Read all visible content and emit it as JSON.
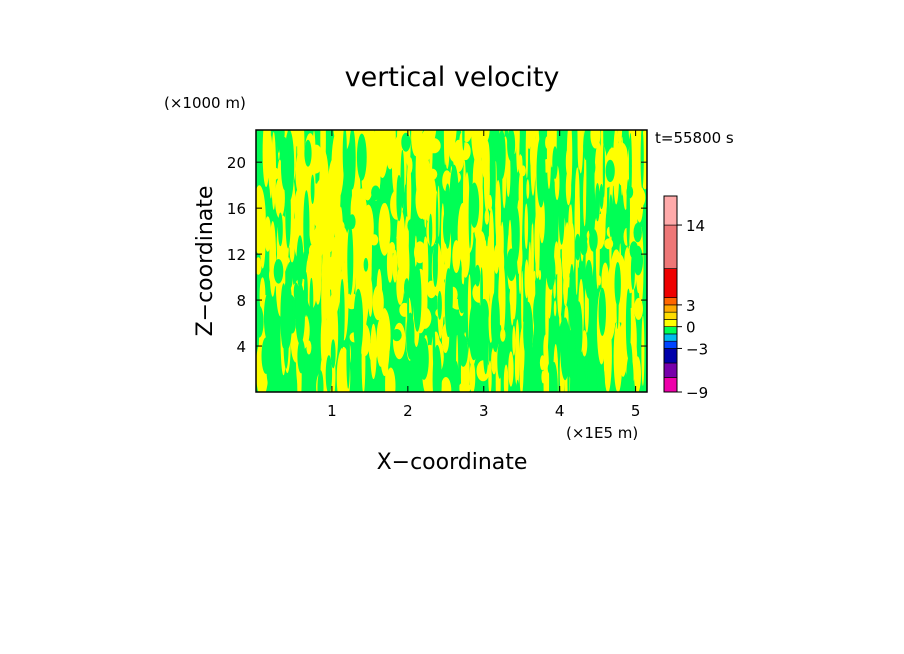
{
  "chart_data": {
    "type": "heatmap",
    "title": "vertical velocity",
    "time_label": "t=55800 s",
    "xlabel": "X−coordinate",
    "ylabel": "Z−coordinate",
    "x_unit": "(×1E5 m)",
    "y_unit": "(×1000 m)",
    "xlim": [
      0,
      5.15
    ],
    "ylim": [
      0,
      22.8
    ],
    "x_ticks": [
      1,
      2,
      3,
      4,
      5
    ],
    "y_ticks": [
      4,
      8,
      12,
      16,
      20
    ],
    "field_colors": {
      "positive": "#ffff00",
      "negative": "#00ff55"
    },
    "colorbar": {
      "tick_labels": [
        "14",
        "3",
        "0",
        "−3",
        "−9"
      ],
      "levels": [
        {
          "from": -9,
          "to": -7,
          "color": "#ee00aa"
        },
        {
          "from": -7,
          "to": -5,
          "color": "#7700aa"
        },
        {
          "from": -5,
          "to": -3,
          "color": "#0000aa"
        },
        {
          "from": -3,
          "to": -2,
          "color": "#0044ff"
        },
        {
          "from": -2,
          "to": -1,
          "color": "#00bbee"
        },
        {
          "from": -1,
          "to": 0,
          "color": "#00ff55"
        },
        {
          "from": 0,
          "to": 1,
          "color": "#ffff00"
        },
        {
          "from": 1,
          "to": 2,
          "color": "#ffdd00"
        },
        {
          "from": 2,
          "to": 3,
          "color": "#ffaa00"
        },
        {
          "from": 3,
          "to": 4,
          "color": "#ff6600"
        },
        {
          "from": 4,
          "to": 8,
          "color": "#ee0000"
        },
        {
          "from": 8,
          "to": 14,
          "color": "#ee7777"
        },
        {
          "from": 14,
          "to": 18,
          "color": "#ffaaaa"
        }
      ]
    }
  }
}
